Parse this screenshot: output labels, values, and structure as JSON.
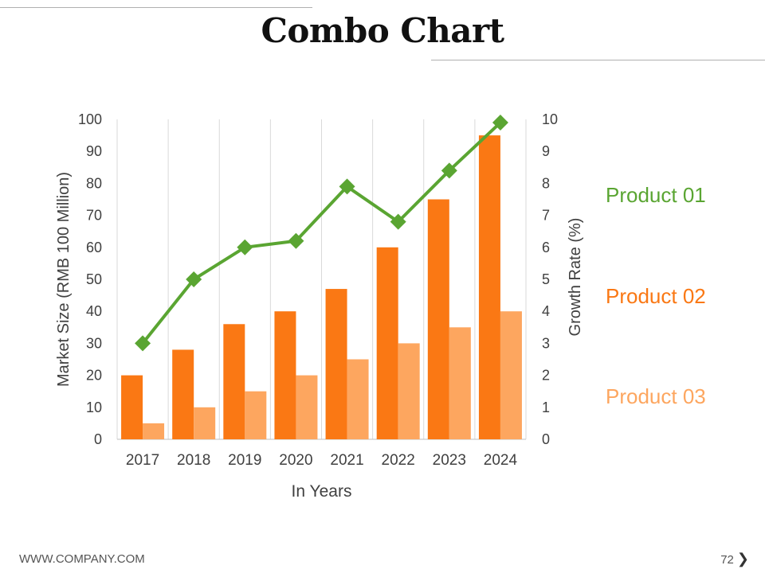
{
  "slide": {
    "title": "Combo Chart",
    "footer_url": "WWW.COMPANY.COM",
    "page_number": "72",
    "next_icon": "chevron-right-icon"
  },
  "colors": {
    "product01": "#5aa532",
    "product02": "#fa7814",
    "product03": "#fda65f",
    "grid": "#d9d9d9",
    "axis_text": "#404040"
  },
  "chart_data": {
    "type": "bar+line",
    "title": "Combo Chart",
    "xlabel": "In Years",
    "ylabel": "Market Size (RMB 100 Million)",
    "y2label": "Growth Rate (%)",
    "categories": [
      "2017",
      "2018",
      "2019",
      "2020",
      "2021",
      "2022",
      "2023",
      "2024"
    ],
    "ylim": [
      0,
      100
    ],
    "y2lim": [
      0,
      10
    ],
    "yticks": [
      0,
      10,
      20,
      30,
      40,
      50,
      60,
      70,
      80,
      90,
      100
    ],
    "y2ticks": [
      0,
      1,
      2,
      3,
      4,
      5,
      6,
      7,
      8,
      9,
      10
    ],
    "legend_position": "right",
    "series": [
      {
        "name": "Product 01",
        "kind": "line",
        "axis": "secondary",
        "values": [
          3.0,
          5.0,
          6.0,
          6.2,
          7.9,
          6.8,
          8.4,
          9.9
        ]
      },
      {
        "name": "Product 02",
        "kind": "bar",
        "axis": "primary",
        "values": [
          20,
          28,
          36,
          40,
          47,
          60,
          75,
          95
        ]
      },
      {
        "name": "Product 03",
        "kind": "bar",
        "axis": "primary",
        "values": [
          5,
          10,
          15,
          20,
          25,
          30,
          35,
          40
        ]
      }
    ]
  }
}
